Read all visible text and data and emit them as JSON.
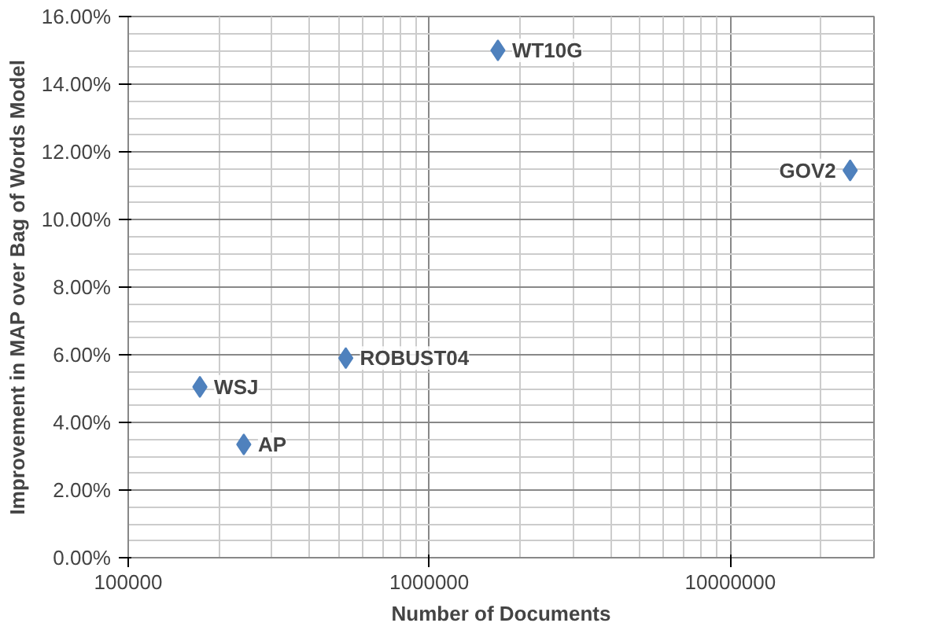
{
  "chart_data": {
    "type": "scatter",
    "xlabel": "Number of Documents",
    "ylabel": "Improvement in MAP over Bag of Words Model",
    "x": [
      173000,
      242000,
      528000,
      1690000,
      25000000
    ],
    "series": [
      {
        "color": "#4f81bd",
        "values": [
          0.0505,
          0.0335,
          0.059,
          0.15,
          0.1145
        ]
      }
    ],
    "annotations": [
      {
        "text": "WSJ",
        "x": 173000,
        "y": 0.0505
      },
      {
        "text": "AP",
        "x": 242000,
        "y": 0.0335
      },
      {
        "text": "ROBUST04",
        "x": 528000,
        "y": 0.059
      },
      {
        "text": "WT10G",
        "x": 1690000,
        "y": 0.15
      },
      {
        "text": "GOV2",
        "x": 25000000,
        "y": 0.1145
      }
    ],
    "log": "x",
    "xlim": [
      100000,
      30000000
    ],
    "xticks": [
      100000,
      1000000,
      10000000
    ],
    "ylim": [
      0,
      0.16
    ],
    "yticks": [
      {
        "value": 0,
        "label": "0.00%"
      },
      {
        "value": 0.02,
        "label": "2.00%"
      },
      {
        "value": 0.04,
        "label": "4.00%"
      },
      {
        "value": 0.06,
        "label": "6.00%"
      },
      {
        "value": 0.08,
        "label": "8.00%"
      },
      {
        "value": 0.1,
        "label": "10.00%"
      },
      {
        "value": 0.12,
        "label": "12.00%"
      },
      {
        "value": 0.14,
        "label": "14.00%"
      },
      {
        "value": 0.16,
        "label": "16.00%"
      }
    ],
    "grid": true,
    "marker": "diamond"
  }
}
